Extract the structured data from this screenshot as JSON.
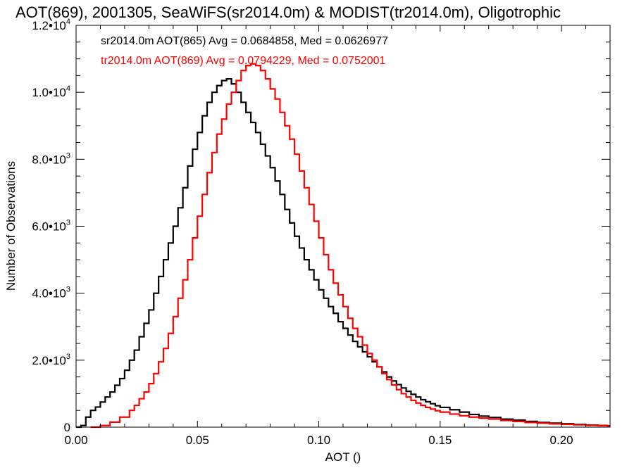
{
  "chart_data": {
    "type": "line",
    "title": "AOT(869), 2001305, SeaWiFS(sr2014.0m) & MODIST(tr2014.0m), Oligotrophic",
    "xlabel": "AOT ()",
    "ylabel": "Number of Observations",
    "xlim": [
      0.0,
      0.22
    ],
    "ylim": [
      0,
      12000
    ],
    "x_ticks": [
      {
        "value": 0.0,
        "label": "0.00"
      },
      {
        "value": 0.05,
        "label": "0.05"
      },
      {
        "value": 0.1,
        "label": "0.10"
      },
      {
        "value": 0.15,
        "label": "0.15"
      },
      {
        "value": 0.2,
        "label": "0.20"
      }
    ],
    "y_ticks": [
      {
        "value": 0,
        "mant": "0",
        "exp": ""
      },
      {
        "value": 2000,
        "mant": "2.0•10",
        "exp": "3"
      },
      {
        "value": 4000,
        "mant": "4.0•10",
        "exp": "3"
      },
      {
        "value": 6000,
        "mant": "6.0•10",
        "exp": "3"
      },
      {
        "value": 8000,
        "mant": "8.0•10",
        "exp": "3"
      },
      {
        "value": 10000,
        "mant": "1.0•10",
        "exp": "4"
      },
      {
        "value": 12000,
        "mant": "1.2•10",
        "exp": "4"
      }
    ],
    "grid": false,
    "legend_placement": "top-left",
    "series": [
      {
        "legend": "sr2014.0m AOT(865) Avg = 0.0684858, Med = 0.0626977",
        "color": "#000000",
        "step": true,
        "points": [
          [
            0.0,
            0
          ],
          [
            0.002,
            50
          ],
          [
            0.004,
            300
          ],
          [
            0.006,
            500
          ],
          [
            0.008,
            600
          ],
          [
            0.01,
            750
          ],
          [
            0.012,
            900
          ],
          [
            0.014,
            1050
          ],
          [
            0.016,
            1250
          ],
          [
            0.018,
            1450
          ],
          [
            0.02,
            1700
          ],
          [
            0.022,
            2000
          ],
          [
            0.024,
            2300
          ],
          [
            0.026,
            2700
          ],
          [
            0.028,
            3100
          ],
          [
            0.03,
            3500
          ],
          [
            0.032,
            4000
          ],
          [
            0.034,
            4500
          ],
          [
            0.036,
            5000
          ],
          [
            0.038,
            5500
          ],
          [
            0.04,
            6000
          ],
          [
            0.042,
            6550
          ],
          [
            0.044,
            7150
          ],
          [
            0.046,
            7800
          ],
          [
            0.048,
            8300
          ],
          [
            0.05,
            8800
          ],
          [
            0.052,
            9300
          ],
          [
            0.054,
            9700
          ],
          [
            0.056,
            10000
          ],
          [
            0.058,
            10200
          ],
          [
            0.06,
            10350
          ],
          [
            0.062,
            10400
          ],
          [
            0.064,
            10250
          ],
          [
            0.066,
            10000
          ],
          [
            0.068,
            9700
          ],
          [
            0.07,
            9400
          ],
          [
            0.072,
            9100
          ],
          [
            0.074,
            8800
          ],
          [
            0.076,
            8450
          ],
          [
            0.078,
            8100
          ],
          [
            0.08,
            7750
          ],
          [
            0.082,
            7350
          ],
          [
            0.084,
            6950
          ],
          [
            0.086,
            6500
          ],
          [
            0.088,
            6100
          ],
          [
            0.09,
            5700
          ],
          [
            0.092,
            5350
          ],
          [
            0.094,
            5000
          ],
          [
            0.096,
            4700
          ],
          [
            0.098,
            4400
          ],
          [
            0.1,
            4100
          ],
          [
            0.102,
            3850
          ],
          [
            0.104,
            3600
          ],
          [
            0.106,
            3400
          ],
          [
            0.108,
            3150
          ],
          [
            0.11,
            2950
          ],
          [
            0.112,
            2750
          ],
          [
            0.114,
            2560
          ],
          [
            0.116,
            2400
          ],
          [
            0.118,
            2250
          ],
          [
            0.12,
            2100
          ],
          [
            0.122,
            1950
          ],
          [
            0.124,
            1800
          ],
          [
            0.126,
            1650
          ],
          [
            0.128,
            1500
          ],
          [
            0.13,
            1380
          ],
          [
            0.132,
            1270
          ],
          [
            0.134,
            1170
          ],
          [
            0.136,
            1070
          ],
          [
            0.138,
            980
          ],
          [
            0.14,
            900
          ],
          [
            0.142,
            820
          ],
          [
            0.144,
            760
          ],
          [
            0.146,
            700
          ],
          [
            0.148,
            640
          ],
          [
            0.15,
            590
          ],
          [
            0.154,
            520
          ],
          [
            0.158,
            450
          ],
          [
            0.162,
            380
          ],
          [
            0.166,
            330
          ],
          [
            0.17,
            290
          ],
          [
            0.175,
            240
          ],
          [
            0.18,
            210
          ],
          [
            0.185,
            170
          ],
          [
            0.19,
            140
          ],
          [
            0.195,
            120
          ],
          [
            0.2,
            100
          ],
          [
            0.205,
            80
          ],
          [
            0.21,
            60
          ],
          [
            0.215,
            50
          ],
          [
            0.219,
            40
          ]
        ]
      },
      {
        "legend": "tr2014.0m AOT(869) Avg = 0.0794229, Med = 0.0752001",
        "color": "#ff0000",
        "step": true,
        "points": [
          [
            0.006,
            0
          ],
          [
            0.01,
            50
          ],
          [
            0.014,
            150
          ],
          [
            0.018,
            300
          ],
          [
            0.022,
            500
          ],
          [
            0.024,
            650
          ],
          [
            0.026,
            850
          ],
          [
            0.028,
            1050
          ],
          [
            0.03,
            1300
          ],
          [
            0.032,
            1600
          ],
          [
            0.034,
            1950
          ],
          [
            0.036,
            2350
          ],
          [
            0.038,
            2800
          ],
          [
            0.04,
            3300
          ],
          [
            0.042,
            3850
          ],
          [
            0.044,
            4400
          ],
          [
            0.046,
            5000
          ],
          [
            0.048,
            5650
          ],
          [
            0.05,
            6300
          ],
          [
            0.052,
            6950
          ],
          [
            0.054,
            7600
          ],
          [
            0.056,
            8200
          ],
          [
            0.058,
            8750
          ],
          [
            0.06,
            9200
          ],
          [
            0.062,
            9650
          ],
          [
            0.064,
            10000
          ],
          [
            0.066,
            10350
          ],
          [
            0.068,
            10650
          ],
          [
            0.07,
            10800
          ],
          [
            0.072,
            10850
          ],
          [
            0.074,
            10800
          ],
          [
            0.076,
            10650
          ],
          [
            0.078,
            10400
          ],
          [
            0.08,
            10100
          ],
          [
            0.082,
            9800
          ],
          [
            0.084,
            9400
          ],
          [
            0.086,
            9000
          ],
          [
            0.088,
            8600
          ],
          [
            0.09,
            8150
          ],
          [
            0.092,
            7650
          ],
          [
            0.094,
            7150
          ],
          [
            0.096,
            6650
          ],
          [
            0.098,
            6150
          ],
          [
            0.1,
            5650
          ],
          [
            0.102,
            5150
          ],
          [
            0.104,
            4700
          ],
          [
            0.106,
            4300
          ],
          [
            0.108,
            3950
          ],
          [
            0.11,
            3600
          ],
          [
            0.112,
            3250
          ],
          [
            0.114,
            2950
          ],
          [
            0.116,
            2700
          ],
          [
            0.118,
            2450
          ],
          [
            0.12,
            2200
          ],
          [
            0.122,
            2000
          ],
          [
            0.124,
            1800
          ],
          [
            0.126,
            1600
          ],
          [
            0.128,
            1420
          ],
          [
            0.13,
            1260
          ],
          [
            0.132,
            1120
          ],
          [
            0.134,
            1000
          ],
          [
            0.136,
            900
          ],
          [
            0.138,
            800
          ],
          [
            0.14,
            720
          ],
          [
            0.142,
            650
          ],
          [
            0.144,
            590
          ],
          [
            0.146,
            540
          ],
          [
            0.148,
            490
          ],
          [
            0.15,
            450
          ],
          [
            0.154,
            390
          ],
          [
            0.158,
            340
          ],
          [
            0.162,
            300
          ],
          [
            0.166,
            270
          ],
          [
            0.17,
            240
          ],
          [
            0.175,
            200
          ],
          [
            0.18,
            170
          ],
          [
            0.185,
            140
          ],
          [
            0.19,
            120
          ],
          [
            0.195,
            100
          ],
          [
            0.2,
            85
          ],
          [
            0.205,
            70
          ],
          [
            0.21,
            55
          ],
          [
            0.215,
            45
          ],
          [
            0.219,
            35
          ]
        ]
      }
    ]
  }
}
